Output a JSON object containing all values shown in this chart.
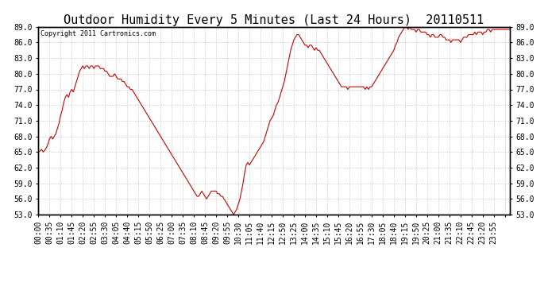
{
  "title": "Outdoor Humidity Every 5 Minutes (Last 24 Hours)  20110511",
  "copyright_text": "Copyright 2011 Cartronics.com",
  "line_color": "#cc0000",
  "bg_color": "#ffffff",
  "plot_bg_color": "#ffffff",
  "grid_color": "#bbbbbb",
  "ylim": [
    53.0,
    89.0
  ],
  "yticks": [
    53.0,
    56.0,
    59.0,
    62.0,
    65.0,
    68.0,
    71.0,
    74.0,
    77.0,
    80.0,
    83.0,
    86.0,
    89.0
  ],
  "title_fontsize": 11,
  "tick_fontsize": 7,
  "humidity_data": [
    65.0,
    65.2,
    65.5,
    65.0,
    65.3,
    65.8,
    66.5,
    67.5,
    68.0,
    67.5,
    68.0,
    68.5,
    69.5,
    70.5,
    72.0,
    73.0,
    74.5,
    75.5,
    76.0,
    75.5,
    76.5,
    77.0,
    76.5,
    77.5,
    78.5,
    79.5,
    80.5,
    81.0,
    81.5,
    81.0,
    81.5,
    81.5,
    81.0,
    81.5,
    81.5,
    81.0,
    81.5,
    81.5,
    81.5,
    81.0,
    81.0,
    81.0,
    80.5,
    80.5,
    80.0,
    79.5,
    79.5,
    79.5,
    80.0,
    79.5,
    79.0,
    79.0,
    79.0,
    78.5,
    78.5,
    78.0,
    77.5,
    77.5,
    77.0,
    77.0,
    76.5,
    76.0,
    75.5,
    75.0,
    74.5,
    74.0,
    73.5,
    73.0,
    72.5,
    72.0,
    71.5,
    71.0,
    70.5,
    70.0,
    69.5,
    69.0,
    68.5,
    68.0,
    67.5,
    67.0,
    66.5,
    66.0,
    65.5,
    65.0,
    64.5,
    64.0,
    63.5,
    63.0,
    62.5,
    62.0,
    61.5,
    61.0,
    60.5,
    60.0,
    59.5,
    59.0,
    58.5,
    58.0,
    57.5,
    57.0,
    56.5,
    56.5,
    57.0,
    57.5,
    57.0,
    56.5,
    56.0,
    56.5,
    57.0,
    57.5,
    57.5,
    57.5,
    57.5,
    57.0,
    57.0,
    56.5,
    56.5,
    56.0,
    55.5,
    55.0,
    54.5,
    54.0,
    53.5,
    53.0,
    53.5,
    54.0,
    55.0,
    56.0,
    57.5,
    59.0,
    61.0,
    62.5,
    63.0,
    62.5,
    63.0,
    63.5,
    64.0,
    64.5,
    65.0,
    65.5,
    66.0,
    66.5,
    67.0,
    68.0,
    69.0,
    70.0,
    71.0,
    71.5,
    72.0,
    73.0,
    74.0,
    74.5,
    75.5,
    76.5,
    77.5,
    78.5,
    80.0,
    81.5,
    83.0,
    84.5,
    85.5,
    86.5,
    87.0,
    87.5,
    87.5,
    87.0,
    86.5,
    86.0,
    85.5,
    85.5,
    85.0,
    85.5,
    85.5,
    85.0,
    84.5,
    85.0,
    84.5,
    84.5,
    84.0,
    83.5,
    83.0,
    82.5,
    82.0,
    81.5,
    81.0,
    80.5,
    80.0,
    79.5,
    79.0,
    78.5,
    78.0,
    77.5,
    77.5,
    77.5,
    77.5,
    77.0,
    77.5,
    77.5,
    77.5,
    77.5,
    77.5,
    77.5,
    77.5,
    77.5,
    77.5,
    77.5,
    77.0,
    77.5,
    77.0,
    77.5,
    77.5,
    78.0,
    78.5,
    79.0,
    79.5,
    80.0,
    80.5,
    81.0,
    81.5,
    82.0,
    82.5,
    83.0,
    83.5,
    84.0,
    84.5,
    85.5,
    86.0,
    87.0,
    87.5,
    88.0,
    88.5,
    89.0,
    89.0,
    88.5,
    89.0,
    88.5,
    88.5,
    88.5,
    88.0,
    88.5,
    88.5,
    88.0,
    88.0,
    88.0,
    88.0,
    87.5,
    87.5,
    87.0,
    87.5,
    87.5,
    87.0,
    87.0,
    87.0,
    87.5,
    87.5,
    87.0,
    87.0,
    86.5,
    86.5,
    86.5,
    86.0,
    86.5,
    86.5,
    86.5,
    86.5,
    86.5,
    86.0,
    86.5,
    87.0,
    87.0,
    87.0,
    87.5,
    87.5,
    87.5,
    87.5,
    88.0,
    87.5,
    88.0,
    88.0,
    88.0,
    87.5,
    88.0,
    88.0,
    88.5,
    88.5,
    88.0,
    88.5,
    88.5,
    88.5,
    88.5,
    88.5,
    88.5,
    88.5,
    88.5,
    88.5,
    88.5,
    88.5,
    88.5
  ],
  "xtick_labels": [
    "00:00",
    "00:35",
    "01:10",
    "01:45",
    "02:20",
    "02:55",
    "03:30",
    "04:05",
    "04:40",
    "05:15",
    "05:50",
    "06:25",
    "07:00",
    "07:35",
    "08:10",
    "08:45",
    "09:20",
    "09:55",
    "10:30",
    "11:05",
    "11:40",
    "12:15",
    "12:50",
    "13:25",
    "14:00",
    "14:35",
    "15:10",
    "15:45",
    "16:20",
    "16:55",
    "17:30",
    "18:05",
    "18:40",
    "19:15",
    "19:50",
    "20:25",
    "21:00",
    "21:35",
    "22:10",
    "22:45",
    "23:20",
    "23:55"
  ]
}
